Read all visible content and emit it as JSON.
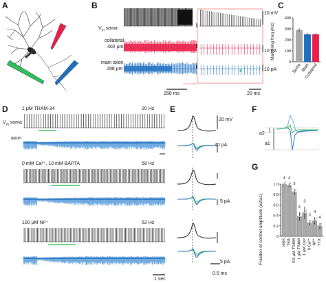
{
  "colors": {
    "soma": "#111111",
    "collateral": "#e8204a",
    "main_axon": "#1f6fbf",
    "axon_light": "#6aa6de",
    "green": "#2fbf5a",
    "zoom_box": "#f08a8a",
    "gray_bar": "#a8a8a8"
  },
  "panel_labels": {
    "A": "A",
    "B": "B",
    "C": "C",
    "D": "D",
    "E": "E",
    "F": "F",
    "G": "G"
  },
  "panel_b": {
    "vm_soma_prefix": "V",
    "vm_soma_sub": "m",
    "vm_soma_suffix": " soma",
    "collateral_label": "collateral",
    "collateral_dist": "302 μm",
    "main_axon_label": "main axon",
    "main_axon_dist": "298 μm",
    "scale_mv": "10 mV",
    "scale_pa_1": "10 pA",
    "scale_pa_2": "10 pA",
    "scale_time_1": "250 ms",
    "scale_time_2": "20 ms"
  },
  "panel_d": {
    "cond1": "1 μM TRAM-34",
    "freq1": "20 Hz",
    "cond2": "0 mM Ca²⁺, 10 mM BAPTA",
    "freq2": "58 Hz",
    "cond3": "100 μM Ni²⁺",
    "freq3": "52 Hz",
    "vm_soma_prefix": "V",
    "vm_soma_sub": "m",
    "vm_soma_suffix": " soma",
    "axon_label": "axon",
    "scale_time": "1 sec"
  },
  "panel_e": {
    "scale_mv": "20 mV",
    "scale_pa_1": "40 pA",
    "scale_pa_2": "5 pA",
    "scale_pa_3": "5 pA",
    "scale_time": "0.5 ms"
  },
  "panel_f": {
    "a1": "a1",
    "a2": "a2"
  },
  "chart_data": [
    {
      "type": "bar",
      "panel": "C",
      "ylabel": "Max firing freq (Hz)",
      "categories": [
        "Soma",
        "Main",
        "Collateral"
      ],
      "values": [
        290,
        250,
        250
      ],
      "errors": [
        15,
        12,
        10
      ],
      "colors": [
        "#a8a8a8",
        "#1f6fbf",
        "#e8204a"
      ],
      "ylim": [
        0,
        400
      ],
      "yticks": [
        "0",
        "100",
        "200",
        "300",
        "400"
      ]
    },
    {
      "type": "bar",
      "panel": "G",
      "ylabel": "Fraction of control amplitude (a2/a1)",
      "categories": [
        "HBS",
        "TEA",
        "0.5 μM TRAM",
        "1 μM TRAM",
        "1 μM Clot",
        "0 Ca²⁺",
        "Ni²⁺",
        "TTX"
      ],
      "values": [
        1.0,
        0.98,
        0.85,
        0.38,
        0.45,
        0.26,
        0.3,
        0.2
      ],
      "errors": [
        0.02,
        0.04,
        0.06,
        0.08,
        0.12,
        0.05,
        0.07,
        0.06
      ],
      "n": [
        "4",
        "4",
        "5",
        "6",
        "3",
        "3",
        "4",
        "4"
      ],
      "ylim": [
        0,
        1.0
      ],
      "yticks": [
        "0",
        "0.2",
        "0.4",
        "0.6",
        "0.8",
        "1.0"
      ]
    }
  ]
}
